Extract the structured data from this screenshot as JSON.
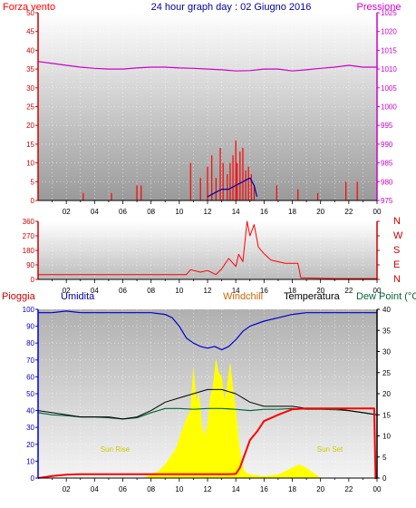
{
  "header": {
    "left_label": "Forza vento",
    "title": "24 hour graph day : 02 Giugno 2016",
    "right_label": "Pressione"
  },
  "hour_ticks": [
    "02",
    "04",
    "06",
    "08",
    "10",
    "12",
    "14",
    "16",
    "18",
    "20",
    "22",
    "00"
  ],
  "panel3_header": {
    "rain": "Pioggia",
    "humidity": "Umidita",
    "windchill": "Windchill",
    "temperature": "Temperatura",
    "dewpoint": "Dew Point (°C"
  },
  "annotations": {
    "sunrise": "Sun Rise",
    "sunset": "Sun Set"
  },
  "colors": {
    "wind": "#ff0000",
    "gust": "#ff0000",
    "avg_wind": "#0000aa",
    "pressure": "#cc00cc",
    "direction": "#ff0000",
    "rain": "#ff0000",
    "humidity": "#0000cc",
    "temperature": "#000000",
    "dewpoint": "#006633",
    "solar": "#ffff00",
    "windchill_label": "#cc6600",
    "rain_axis": "#cc0000"
  },
  "chart_data": [
    {
      "type": "line",
      "title": "Forza vento / Pressione",
      "x_range_hours": [
        0,
        24
      ],
      "left_axis": {
        "ylim": [
          0,
          50
        ],
        "ticks": [
          "0",
          "5",
          "10",
          "15",
          "20",
          "25",
          "30",
          "35",
          "40",
          "45",
          "50"
        ]
      },
      "right_axis": {
        "ylim": [
          975,
          1025
        ],
        "ticks": [
          "975",
          "980",
          "985",
          "990",
          "995",
          "1000",
          "1005",
          "1010",
          "1015",
          "1020",
          "1025"
        ]
      },
      "series": [
        {
          "name": "Pressione",
          "axis": "right",
          "x": [
            0,
            1,
            2,
            3,
            4,
            5,
            6,
            7,
            8,
            9,
            10,
            11,
            12,
            13,
            14,
            15,
            16,
            17,
            18,
            19,
            20,
            21,
            22,
            23,
            24
          ],
          "values": [
            1012,
            1011.5,
            1011,
            1010.5,
            1010.2,
            1010,
            1010,
            1010.3,
            1010.5,
            1010.5,
            1010.3,
            1010.2,
            1010,
            1009.8,
            1009.5,
            1009.6,
            1010,
            1010,
            1009.5,
            1009.8,
            1010.2,
            1010.5,
            1011,
            1010.5,
            1010.5
          ]
        },
        {
          "name": "Forza vento",
          "axis": "left",
          "x": [
            3.2,
            5.2,
            7.0,
            7.3,
            10.8,
            11.5,
            12.0,
            12.3,
            12.6,
            12.9,
            13.1,
            13.4,
            13.6,
            13.8,
            14.0,
            14.1,
            14.3,
            14.5,
            14.7,
            14.9,
            15.1,
            15.3,
            16.9,
            18.4,
            19.8,
            21.8,
            22.6
          ],
          "values": [
            2,
            2,
            4,
            4,
            10,
            6,
            9,
            12,
            6,
            14,
            10,
            7,
            10,
            12,
            16,
            10,
            13,
            14,
            8,
            9,
            7,
            4,
            4,
            3,
            2,
            5,
            5
          ]
        },
        {
          "name": "Vento medio",
          "axis": "left",
          "x": [
            12.0,
            12.5,
            13.0,
            13.5,
            14.0,
            14.5,
            15.0,
            15.3,
            15.5
          ],
          "values": [
            1,
            2,
            3,
            3,
            4,
            5,
            6,
            4,
            1
          ]
        }
      ]
    },
    {
      "type": "line",
      "title": "Direzione vento",
      "x_range_hours": [
        0,
        24
      ],
      "ylim": [
        0,
        360
      ],
      "y_ticks": [
        "0",
        "90",
        "180",
        "270",
        "360"
      ],
      "right_labels": [
        "N",
        "W",
        "S",
        "E",
        "N"
      ],
      "series": [
        {
          "name": "Direzione",
          "x": [
            0,
            10.5,
            10.8,
            11.5,
            12.0,
            12.6,
            13.0,
            13.5,
            13.8,
            14.0,
            14.2,
            14.5,
            14.8,
            15.0,
            15.3,
            15.6,
            16.0,
            16.5,
            17.5,
            18.4,
            18.6,
            21.0,
            24.0
          ],
          "values": [
            30,
            30,
            60,
            45,
            55,
            30,
            65,
            130,
            100,
            80,
            155,
            110,
            360,
            270,
            340,
            200,
            160,
            120,
            100,
            100,
            10,
            5,
            5
          ]
        }
      ]
    },
    {
      "type": "line",
      "title": "Pioggia / Umidita / Temperatura",
      "x_range_hours": [
        0,
        24
      ],
      "left_axis": {
        "ylim": [
          0,
          100
        ],
        "ticks": [
          "0",
          "10",
          "20",
          "30",
          "40",
          "50",
          "60",
          "70",
          "80",
          "90",
          "100"
        ]
      },
      "right_axis": {
        "ylim": [
          0,
          40
        ],
        "ticks": [
          "0",
          "5",
          "10",
          "15",
          "20",
          "25",
          "30",
          "35",
          "40"
        ]
      },
      "series": [
        {
          "name": "Umidita",
          "axis": "left",
          "x": [
            0,
            1,
            2,
            3,
            4,
            5,
            6,
            7,
            8,
            9,
            9.5,
            10,
            10.5,
            11,
            11.5,
            12,
            12.5,
            13,
            13.5,
            14,
            14.5,
            15,
            16,
            17,
            18,
            19,
            20,
            21,
            22,
            23,
            24
          ],
          "values": [
            98,
            98,
            99,
            98,
            98,
            98,
            98,
            98,
            98,
            97,
            95,
            90,
            83,
            80,
            78,
            77,
            78,
            76,
            78,
            82,
            87,
            90,
            93,
            95,
            97,
            98,
            98,
            98,
            98,
            98,
            98
          ]
        },
        {
          "name": "Temperatura",
          "axis": "right",
          "x": [
            0,
            1,
            2,
            3,
            4,
            5,
            6,
            7,
            8,
            9,
            10,
            11,
            12,
            13,
            14,
            15,
            16,
            17,
            18,
            19,
            20,
            21,
            22,
            23,
            24
          ],
          "values": [
            16,
            15.5,
            15,
            14.5,
            14.5,
            14.5,
            14,
            14.5,
            16,
            18,
            19,
            20,
            21,
            21,
            20,
            18,
            17,
            17,
            17,
            16.5,
            16.5,
            16.5,
            16,
            15.5,
            15
          ]
        },
        {
          "name": "Dew Point",
          "axis": "right",
          "x": [
            0,
            1,
            2,
            3,
            4,
            5,
            6,
            7,
            8,
            9,
            10,
            11,
            12,
            13,
            14,
            15,
            16,
            17,
            18,
            19,
            20,
            21,
            22,
            23,
            24
          ],
          "values": [
            15.5,
            15,
            14.8,
            14.5,
            14.5,
            14.3,
            14,
            14.3,
            15.5,
            16.5,
            16.5,
            16.3,
            16.5,
            16.5,
            16.3,
            16,
            16.3,
            16.3,
            16.5,
            16.3,
            16.3,
            16.2,
            16,
            15.5,
            15
          ]
        },
        {
          "name": "Pioggia",
          "axis": "right",
          "x": [
            0,
            1,
            2,
            3,
            4,
            6,
            8,
            10,
            12,
            13.5,
            14.0,
            14.3,
            15,
            15.5,
            16,
            17,
            18,
            19,
            20,
            21,
            22,
            23,
            23.8,
            23.9,
            24
          ],
          "values": [
            0,
            0.5,
            0.8,
            0.9,
            0.9,
            0.9,
            0.9,
            0.9,
            0.9,
            0.9,
            1.0,
            2.5,
            9,
            11,
            13.5,
            15,
            16.3,
            16.5,
            16.5,
            16.5,
            16.5,
            16.5,
            16.5,
            0,
            0
          ]
        },
        {
          "name": "Radiazione solare",
          "axis": "left",
          "x": [
            7.5,
            8,
            8.5,
            9,
            9.5,
            9.8,
            10.2,
            10.5,
            10.8,
            11.0,
            11.2,
            11.4,
            11.6,
            11.8,
            12.0,
            12.2,
            12.4,
            12.6,
            12.8,
            13.0,
            13.2,
            13.4,
            13.6,
            13.8,
            14.0,
            14.2,
            14.4,
            14.6,
            15,
            16,
            17,
            18,
            18.5,
            19,
            20
          ],
          "values": [
            0,
            2,
            4,
            8,
            14,
            18,
            28,
            35,
            40,
            65,
            45,
            50,
            30,
            25,
            32,
            48,
            55,
            70,
            62,
            60,
            45,
            55,
            68,
            52,
            40,
            22,
            10,
            4,
            2,
            1,
            2,
            6,
            8,
            6,
            0
          ]
        }
      ]
    }
  ]
}
